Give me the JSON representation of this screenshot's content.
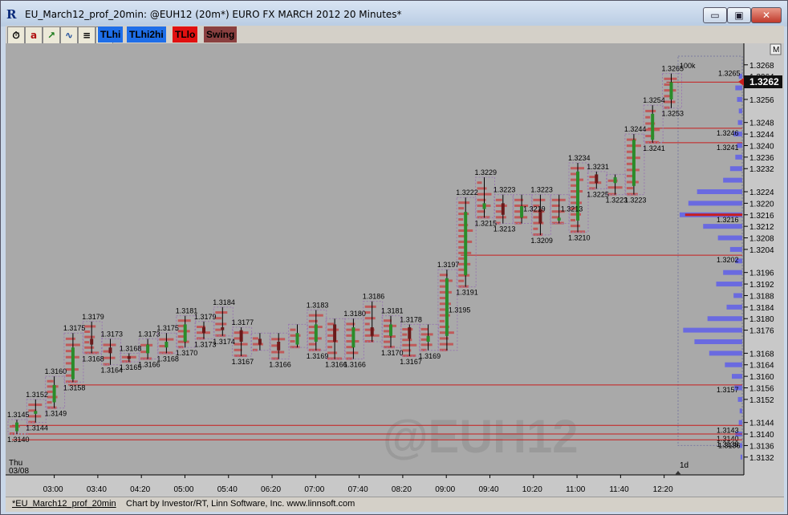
{
  "window": {
    "icon": "R",
    "title": "EU_March12_prof_20min: @EUH12 (20m*) EURO FX MARCH 2012 20 Minutes*",
    "minimize": "▭",
    "maximize": "▣",
    "close": "✕"
  },
  "toolbar": {
    "icons": [
      "clock-icon",
      "a-icon",
      "til-chart-icon",
      "chart-icon",
      "list-icon",
      "trash-icon"
    ],
    "icon_glyphs": [
      "⏱",
      "a",
      "↗",
      "∿",
      "≡",
      "🗑"
    ],
    "buttons": [
      {
        "label": "TLhi",
        "color": "#1e6ee8"
      },
      {
        "label": "TLhi2hi",
        "color": "#1e6ee8"
      },
      {
        "label": "TLlo",
        "color": "#e01010"
      },
      {
        "label": "Swing",
        "color": "#8a4040"
      }
    ]
  },
  "chart": {
    "watermark": "@EUH12",
    "corner_label": "M",
    "current_price": "1.3262",
    "date_label_day": "Thu",
    "date_label_date": "03/08",
    "profile_label": "1d",
    "volume_label": "100k",
    "colors": {
      "background": "#a9a9a9",
      "panel": "#b5b5b5",
      "bar": "#000000",
      "up_candle": "#2a8c2a",
      "profile_bar": "#c84040",
      "volume_profile": "#5a5aee",
      "level_line": "#c81e1e",
      "price_marker": "#101010"
    }
  },
  "chart_data": {
    "type": "candlestick",
    "x_labels": [
      "03:00",
      "03:40",
      "04:20",
      "05:00",
      "05:40",
      "06:20",
      "07:00",
      "07:40",
      "08:20",
      "09:00",
      "09:40",
      "10:20",
      "11:00",
      "11:40",
      "12:20"
    ],
    "y_ticks": [
      "1.3268",
      "1.3264",
      "1.3256",
      "1.3248",
      "1.3244",
      "1.3240",
      "1.3236",
      "1.3232",
      "1.3224",
      "1.3220",
      "1.3216",
      "1.3212",
      "1.3208",
      "1.3204",
      "1.3196",
      "1.3192",
      "1.3188",
      "1.3184",
      "1.3180",
      "1.3176",
      "1.3168",
      "1.3164",
      "1.3160",
      "1.3156",
      "1.3152",
      "1.3144",
      "1.3140",
      "1.3136",
      "1.3132"
    ],
    "ylim": [
      1.313,
      1.3271
    ],
    "bars": [
      {
        "high": 1.3145,
        "low": 1.314,
        "open": 1.3141,
        "close": 1.3144
      },
      {
        "high": 1.3152,
        "low": 1.3144,
        "open": 1.3147,
        "close": 1.3148
      },
      {
        "high": 1.316,
        "low": 1.3149,
        "open": 1.3151,
        "close": 1.3157
      },
      {
        "high": 1.3175,
        "low": 1.3158,
        "open": 1.3159,
        "close": 1.317
      },
      {
        "high": 1.3179,
        "low": 1.3168,
        "open": 1.3173,
        "close": 1.3171
      },
      {
        "high": 1.3173,
        "low": 1.3164,
        "open": 1.317,
        "close": 1.3168
      },
      {
        "high": 1.3168,
        "low": 1.3165,
        "open": 1.3167,
        "close": 1.3166
      },
      {
        "high": 1.3173,
        "low": 1.3166,
        "open": 1.3168,
        "close": 1.3171
      },
      {
        "high": 1.3175,
        "low": 1.3168,
        "open": 1.317,
        "close": 1.3172
      },
      {
        "high": 1.3181,
        "low": 1.317,
        "open": 1.3172,
        "close": 1.3178
      },
      {
        "high": 1.3179,
        "low": 1.3173,
        "open": 1.3177,
        "close": 1.3175
      },
      {
        "high": 1.3184,
        "low": 1.3174,
        "open": 1.3177,
        "close": 1.3176
      },
      {
        "high": 1.3177,
        "low": 1.3167,
        "open": 1.3176,
        "close": 1.3172
      },
      {
        "high": 1.3175,
        "low": 1.3169,
        "open": 1.3173,
        "close": 1.3171
      },
      {
        "high": 1.3175,
        "low": 1.3166,
        "open": 1.3172,
        "close": 1.3169
      },
      {
        "high": 1.3178,
        "low": 1.317,
        "open": 1.3171,
        "close": 1.3175
      },
      {
        "high": 1.3183,
        "low": 1.3169,
        "open": 1.3172,
        "close": 1.3178
      },
      {
        "high": 1.318,
        "low": 1.3166,
        "open": 1.3178,
        "close": 1.3172
      },
      {
        "high": 1.318,
        "low": 1.3166,
        "open": 1.317,
        "close": 1.3177
      },
      {
        "high": 1.3186,
        "low": 1.3172,
        "open": 1.3177,
        "close": 1.3174
      },
      {
        "high": 1.3181,
        "low": 1.317,
        "open": 1.3174,
        "close": 1.3178
      },
      {
        "high": 1.3178,
        "low": 1.3167,
        "open": 1.3177,
        "close": 1.3173
      },
      {
        "high": 1.3178,
        "low": 1.3169,
        "open": 1.3172,
        "close": 1.3174
      },
      {
        "high": 1.3197,
        "low": 1.3169,
        "open": 1.3174,
        "close": 1.3194
      },
      {
        "high": 1.3222,
        "low": 1.3191,
        "open": 1.3195,
        "close": 1.3217
      },
      {
        "high": 1.3229,
        "low": 1.3215,
        "open": 1.3218,
        "close": 1.322
      },
      {
        "high": 1.3223,
        "low": 1.3213,
        "open": 1.322,
        "close": 1.3216
      },
      {
        "high": 1.3223,
        "low": 1.3213,
        "open": 1.3215,
        "close": 1.3219
      },
      {
        "high": 1.3223,
        "low": 1.3209,
        "open": 1.3218,
        "close": 1.3213
      },
      {
        "high": 1.3223,
        "low": 1.3213,
        "open": 1.3214,
        "close": 1.3215
      },
      {
        "high": 1.3234,
        "low": 1.321,
        "open": 1.3214,
        "close": 1.3231
      },
      {
        "high": 1.3231,
        "low": 1.3225,
        "open": 1.323,
        "close": 1.3227
      },
      {
        "high": 1.323,
        "low": 1.3223,
        "open": 1.3227,
        "close": 1.3229
      },
      {
        "high": 1.3244,
        "low": 1.3223,
        "open": 1.3226,
        "close": 1.3242
      },
      {
        "high": 1.3254,
        "low": 1.3241,
        "open": 1.3242,
        "close": 1.3251
      },
      {
        "high": 1.3265,
        "low": 1.3253,
        "open": 1.3256,
        "close": 1.3262
      }
    ],
    "price_labels": [
      {
        "i": 0,
        "t": "1.3145",
        "pos": "top"
      },
      {
        "i": 0,
        "t": "1.3140",
        "pos": "bottom"
      },
      {
        "i": 1,
        "t": "1.3152",
        "pos": "top"
      },
      {
        "i": 1,
        "t": "1.3144",
        "pos": "bottom"
      },
      {
        "i": 2,
        "t": "1.3160",
        "pos": "top"
      },
      {
        "i": 2,
        "t": "1.3149",
        "pos": "bottom"
      },
      {
        "i": 3,
        "t": "1.3175",
        "pos": "top"
      },
      {
        "i": 3,
        "t": "1.3158",
        "pos": "bottom"
      },
      {
        "i": 4,
        "t": "1.3179",
        "pos": "top"
      },
      {
        "i": 4,
        "t": "1.3168",
        "pos": "bottom"
      },
      {
        "i": 5,
        "t": "1.3173",
        "pos": "top"
      },
      {
        "i": 5,
        "t": "1.3164",
        "pos": "bottom"
      },
      {
        "i": 6,
        "t": "1.3168",
        "pos": "top"
      },
      {
        "i": 6,
        "t": "1.3165",
        "pos": "bottom"
      },
      {
        "i": 7,
        "t": "1.3173",
        "pos": "top"
      },
      {
        "i": 7,
        "t": "1.3166",
        "pos": "bottom"
      },
      {
        "i": 8,
        "t": "1.3175",
        "pos": "top"
      },
      {
        "i": 8,
        "t": "1.3168",
        "pos": "bottom"
      },
      {
        "i": 9,
        "t": "1.3181",
        "pos": "top"
      },
      {
        "i": 9,
        "t": "1.3170",
        "pos": "bottom"
      },
      {
        "i": 10,
        "t": "1.3179",
        "pos": "top"
      },
      {
        "i": 10,
        "t": "1.3173",
        "pos": "bottom"
      },
      {
        "i": 11,
        "t": "1.3184",
        "pos": "top"
      },
      {
        "i": 11,
        "t": "1.3174",
        "pos": "bottom"
      },
      {
        "i": 12,
        "t": "1.3177",
        "pos": "top"
      },
      {
        "i": 12,
        "t": "1.3167",
        "pos": "bottom"
      },
      {
        "i": 14,
        "t": "1.3166",
        "pos": "bottom"
      },
      {
        "i": 16,
        "t": "1.3183",
        "pos": "top"
      },
      {
        "i": 16,
        "t": "1.3169",
        "pos": "bottom"
      },
      {
        "i": 17,
        "t": "1.3166",
        "pos": "bottom"
      },
      {
        "i": 18,
        "t": "1.3180",
        "pos": "top"
      },
      {
        "i": 18,
        "t": "1.3166",
        "pos": "bottom"
      },
      {
        "i": 19,
        "t": "1.3186",
        "pos": "top"
      },
      {
        "i": 20,
        "t": "1.3181",
        "pos": "top"
      },
      {
        "i": 20,
        "t": "1.3170",
        "pos": "bottom"
      },
      {
        "i": 21,
        "t": "1.3178",
        "pos": "top"
      },
      {
        "i": 21,
        "t": "1.3167",
        "pos": "bottom"
      },
      {
        "i": 22,
        "t": "1.3169",
        "pos": "bottom"
      },
      {
        "i": 23,
        "t": "1.3197",
        "pos": "top"
      },
      {
        "i": 23,
        "t": "1.3195",
        "pos": "right"
      },
      {
        "i": 24,
        "t": "1.3222",
        "pos": "top"
      },
      {
        "i": 24,
        "t": "1.3191",
        "pos": "bottom"
      },
      {
        "i": 25,
        "t": "1.3229",
        "pos": "top"
      },
      {
        "i": 25,
        "t": "1.3215",
        "pos": "bottom"
      },
      {
        "i": 26,
        "t": "1.3223",
        "pos": "top"
      },
      {
        "i": 26,
        "t": "1.3213",
        "pos": "bottom"
      },
      {
        "i": 27,
        "t": "1.3219",
        "pos": "right"
      },
      {
        "i": 28,
        "t": "1.3223",
        "pos": "top"
      },
      {
        "i": 28,
        "t": "1.3209",
        "pos": "bottom"
      },
      {
        "i": 29,
        "t": "1.3213",
        "pos": "right"
      },
      {
        "i": 30,
        "t": "1.3234",
        "pos": "top"
      },
      {
        "i": 30,
        "t": "1.3210",
        "pos": "bottom"
      },
      {
        "i": 31,
        "t": "1.3231",
        "pos": "top"
      },
      {
        "i": 31,
        "t": "1.3225",
        "pos": "bottom"
      },
      {
        "i": 32,
        "t": "1.3223",
        "pos": "bottom"
      },
      {
        "i": 33,
        "t": "1.3244",
        "pos": "top"
      },
      {
        "i": 33,
        "t": "1.3223",
        "pos": "bottom"
      },
      {
        "i": 34,
        "t": "1.3254",
        "pos": "top"
      },
      {
        "i": 34,
        "t": "1.3241",
        "pos": "bottom"
      },
      {
        "i": 35,
        "t": "1.3265",
        "pos": "top"
      },
      {
        "i": 35,
        "t": "1.3253",
        "pos": "bottom"
      }
    ],
    "levels": [
      {
        "price": 1.3262,
        "label": "1.3262",
        "from": 35
      },
      {
        "price": 1.3246,
        "label": "1.3246",
        "from": 34
      },
      {
        "price": 1.3241,
        "label": "1.3241",
        "from": 34
      },
      {
        "price": 1.3216,
        "label": "1.3216",
        "from": 36
      },
      {
        "price": 1.3202,
        "label": "1.3202",
        "from": 24
      },
      {
        "price": 1.3157,
        "label": "1.3157",
        "from": 3
      },
      {
        "price": 1.3143,
        "label": "1.3143",
        "from": 0
      },
      {
        "price": 1.314,
        "label": "1.3140",
        "from": 0
      },
      {
        "price": 1.3138,
        "label": "1.3138",
        "from": 0
      }
    ],
    "extra_labels": [
      {
        "t": "1.3136",
        "price": 1.3136
      },
      {
        "t": "1.3265",
        "price": 1.3265
      }
    ],
    "volume_profile": [
      [
        1.3132,
        2
      ],
      [
        1.3136,
        3
      ],
      [
        1.314,
        8
      ],
      [
        1.3144,
        4
      ],
      [
        1.3148,
        3
      ],
      [
        1.3152,
        5
      ],
      [
        1.3156,
        9
      ],
      [
        1.316,
        12
      ],
      [
        1.3164,
        20
      ],
      [
        1.3168,
        38
      ],
      [
        1.3172,
        55
      ],
      [
        1.3176,
        68
      ],
      [
        1.318,
        40
      ],
      [
        1.3184,
        18
      ],
      [
        1.3188,
        10
      ],
      [
        1.3192,
        30
      ],
      [
        1.3196,
        22
      ],
      [
        1.32,
        8
      ],
      [
        1.3204,
        14
      ],
      [
        1.3208,
        28
      ],
      [
        1.3212,
        45
      ],
      [
        1.3216,
        72
      ],
      [
        1.322,
        62
      ],
      [
        1.3224,
        52
      ],
      [
        1.3228,
        22
      ],
      [
        1.3232,
        14
      ],
      [
        1.3236,
        8
      ],
      [
        1.324,
        6
      ],
      [
        1.3244,
        10
      ],
      [
        1.3248,
        5
      ],
      [
        1.3252,
        4
      ],
      [
        1.3256,
        6
      ],
      [
        1.326,
        8
      ],
      [
        1.3264,
        4
      ]
    ]
  },
  "status": {
    "tab": "*EU_March12_prof_20min",
    "credit": "Chart by Investor/RT, Linn Software, Inc. www.linnsoft.com"
  }
}
